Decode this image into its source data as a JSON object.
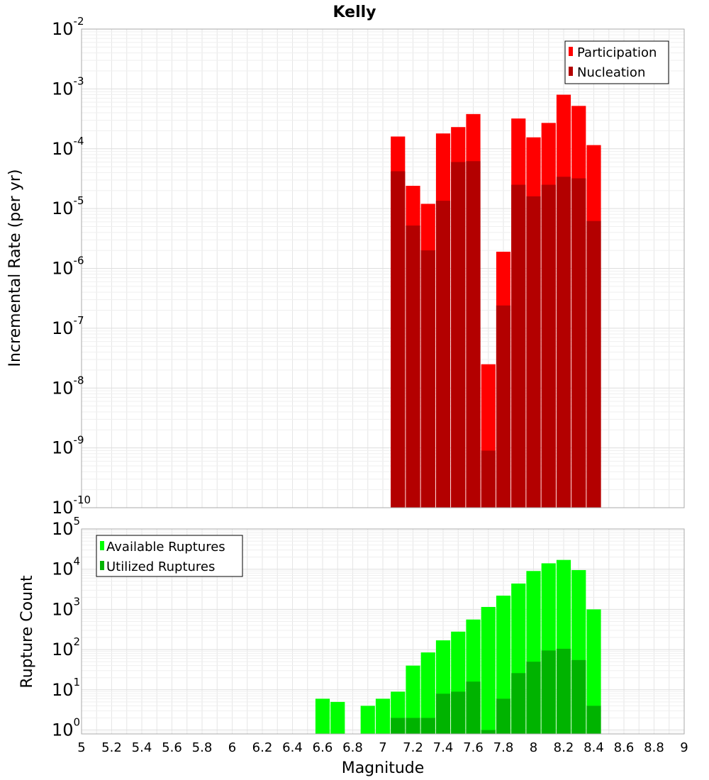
{
  "chart_data": [
    {
      "type": "bar",
      "title": "Kelly",
      "ylabel": "Incremental Rate (per yr)",
      "xlabel": "",
      "yscale": "log",
      "ylim": [
        1e-10,
        0.01
      ],
      "xlim": [
        5,
        9
      ],
      "legend_position": "top-right",
      "x": [
        7.1,
        7.2,
        7.3,
        7.4,
        7.5,
        7.6,
        7.7,
        7.8,
        7.9,
        8.0,
        8.1,
        8.2,
        8.3,
        8.4
      ],
      "series": [
        {
          "name": "Participation",
          "color": "#ff0000",
          "values": [
            0.00016,
            2.4e-05,
            1.2e-05,
            0.00018,
            0.00023,
            0.00038,
            2.5e-08,
            1.9e-06,
            0.00032,
            0.000155,
            0.00027,
            0.0008,
            0.00052,
            0.000115
          ]
        },
        {
          "name": "Nucleation",
          "color": "#b30000",
          "values": [
            4.2e-05,
            5.2e-06,
            2e-06,
            1.35e-05,
            6e-05,
            6.2e-05,
            9e-10,
            2.4e-07,
            2.5e-05,
            1.6e-05,
            2.5e-05,
            3.4e-05,
            3.2e-05,
            6.2e-06
          ]
        }
      ],
      "ytick_labels": [
        {
          "base": "10",
          "exp": "-10",
          "value": 1e-10
        },
        {
          "base": "10",
          "exp": "-9",
          "value": 1e-09
        },
        {
          "base": "10",
          "exp": "-8",
          "value": 1e-08
        },
        {
          "base": "10",
          "exp": "-7",
          "value": 1e-07
        },
        {
          "base": "10",
          "exp": "-6",
          "value": 1e-06
        },
        {
          "base": "10",
          "exp": "-5",
          "value": 1e-05
        },
        {
          "base": "10",
          "exp": "-4",
          "value": 0.0001
        },
        {
          "base": "10",
          "exp": "-3",
          "value": 0.001
        },
        {
          "base": "10",
          "exp": "-2",
          "value": 0.01
        }
      ]
    },
    {
      "type": "bar",
      "title": "",
      "ylabel": "Rupture Count",
      "xlabel": "Magnitude",
      "yscale": "log",
      "ylim": [
        0.8,
        100000.0
      ],
      "xlim": [
        5,
        9
      ],
      "legend_position": "top-left",
      "x": [
        6.6,
        6.7,
        6.9,
        7.0,
        7.1,
        7.2,
        7.3,
        7.4,
        7.5,
        7.6,
        7.7,
        7.8,
        7.9,
        8.0,
        8.1,
        8.2,
        8.3,
        8.4
      ],
      "series": [
        {
          "name": "Available Ruptures",
          "color": "#00ff00",
          "values": [
            6,
            5,
            4,
            6,
            9,
            40,
            85,
            170,
            280,
            560,
            1150,
            2200,
            4400,
            9000,
            14000,
            17000,
            9500,
            1000
          ]
        },
        {
          "name": "Utilized Ruptures",
          "color": "#00b300",
          "values": [
            null,
            null,
            null,
            null,
            2,
            2,
            2,
            8,
            9,
            16,
            1,
            6,
            26,
            50,
            95,
            105,
            55,
            4
          ]
        }
      ],
      "ytick_labels": [
        {
          "base": "10",
          "exp": "0",
          "value": 1
        },
        {
          "base": "10",
          "exp": "1",
          "value": 10
        },
        {
          "base": "10",
          "exp": "2",
          "value": 100
        },
        {
          "base": "10",
          "exp": "3",
          "value": 1000
        },
        {
          "base": "10",
          "exp": "4",
          "value": 10000
        },
        {
          "base": "10",
          "exp": "5",
          "value": 100000
        }
      ],
      "xtick_labels": [
        "5",
        "5.2",
        "5.4",
        "5.6",
        "5.8",
        "6",
        "6.2",
        "6.4",
        "6.6",
        "6.8",
        "7",
        "7.2",
        "7.4",
        "7.6",
        "7.8",
        "8",
        "8.2",
        "8.4",
        "8.6",
        "8.8",
        "9"
      ]
    }
  ]
}
